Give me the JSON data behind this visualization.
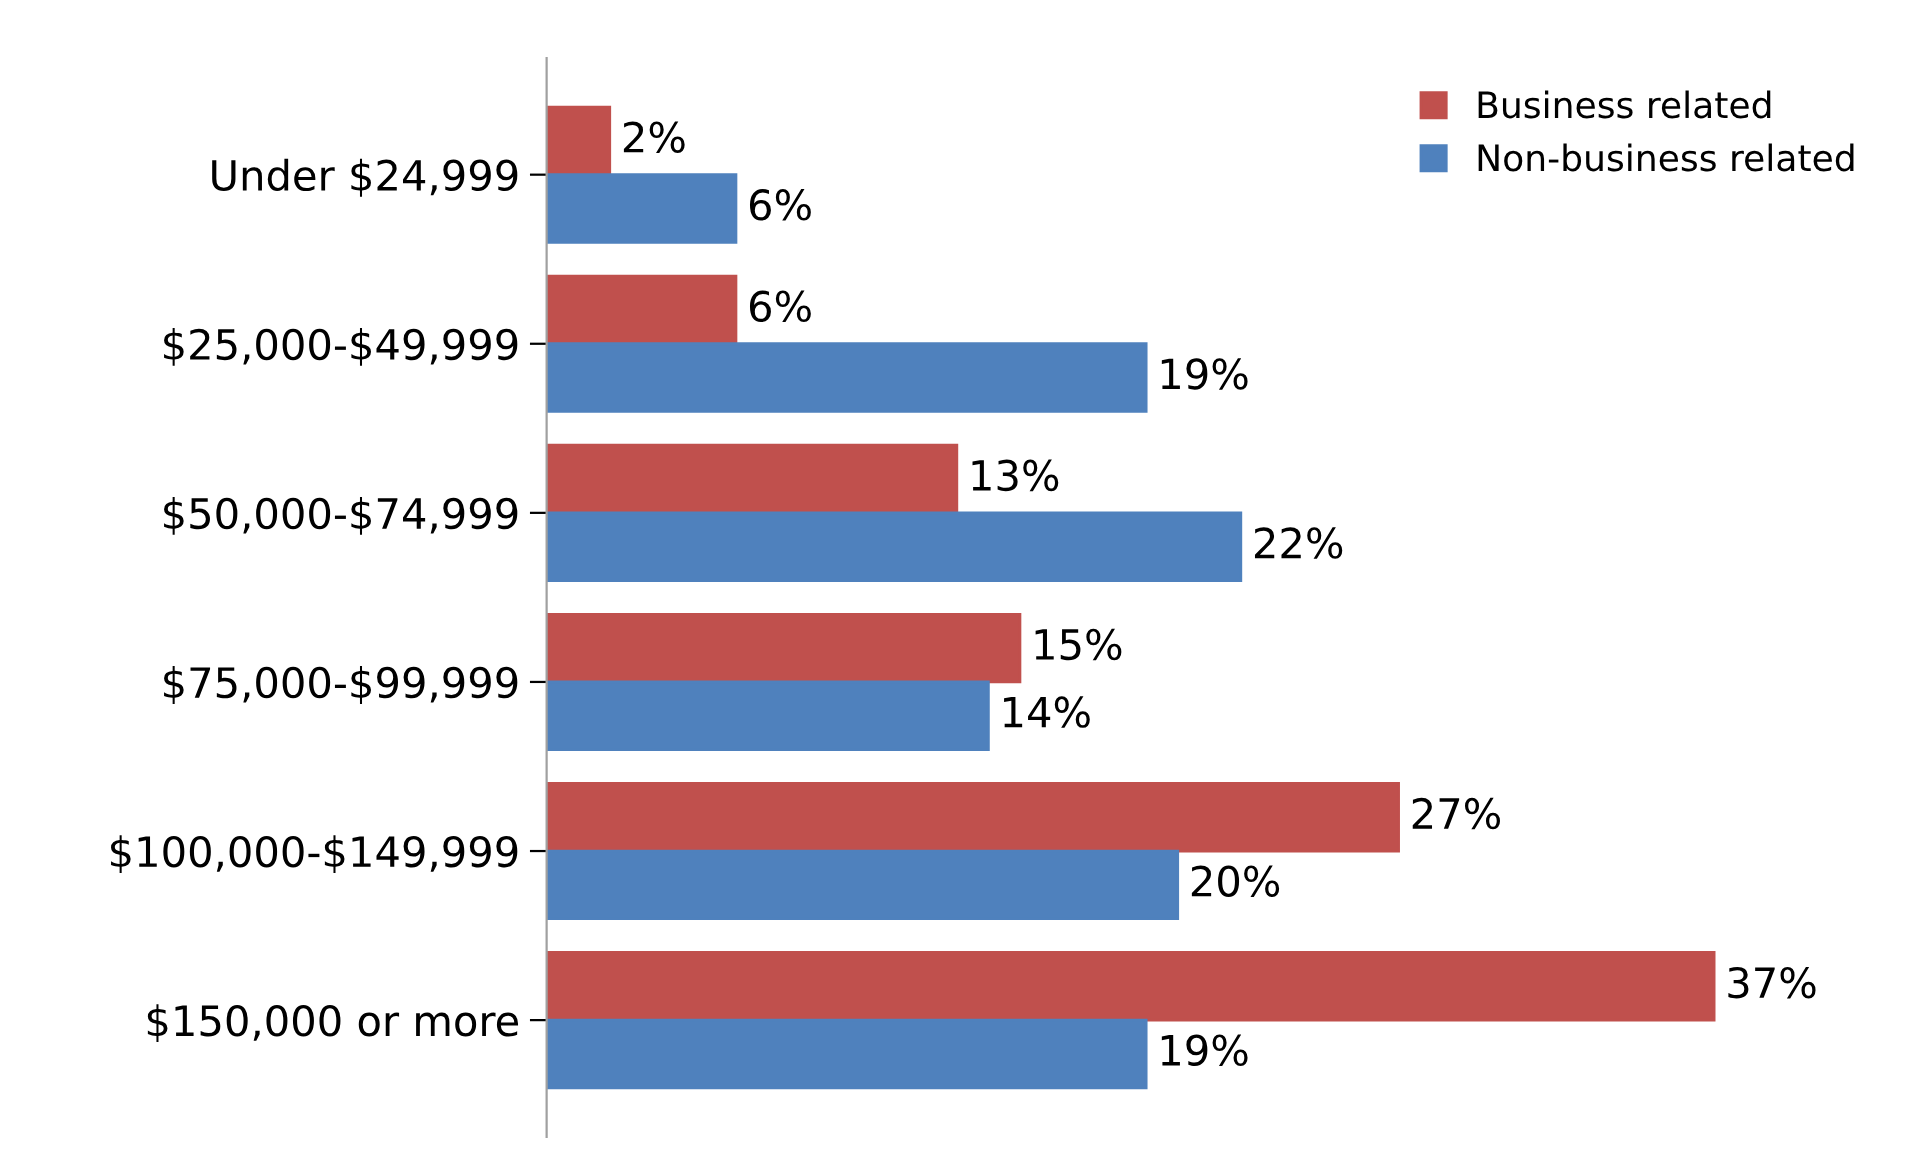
{
  "chart_data": {
    "type": "bar",
    "orientation": "horizontal",
    "categories": [
      "Under $24,999",
      "$25,000-$49,999",
      "$50,000-$74,999",
      "$75,000-$99,999",
      "$100,000-$149,999",
      "$150,000 or more"
    ],
    "series": [
      {
        "name": "Business related",
        "color": "#c0504d",
        "values": [
          2,
          6,
          13,
          15,
          27,
          37
        ],
        "value_labels": [
          "2%",
          "6%",
          "13%",
          "15%",
          "27%",
          "37%"
        ]
      },
      {
        "name": "Non-business related",
        "color": "#4f81bd",
        "values": [
          6,
          19,
          22,
          14,
          20,
          19
        ],
        "value_labels": [
          "6%",
          "19%",
          "22%",
          "14%",
          "20%",
          "19%"
        ]
      }
    ],
    "legend": "top right",
    "grid": false,
    "tick_labels": "y"
  }
}
